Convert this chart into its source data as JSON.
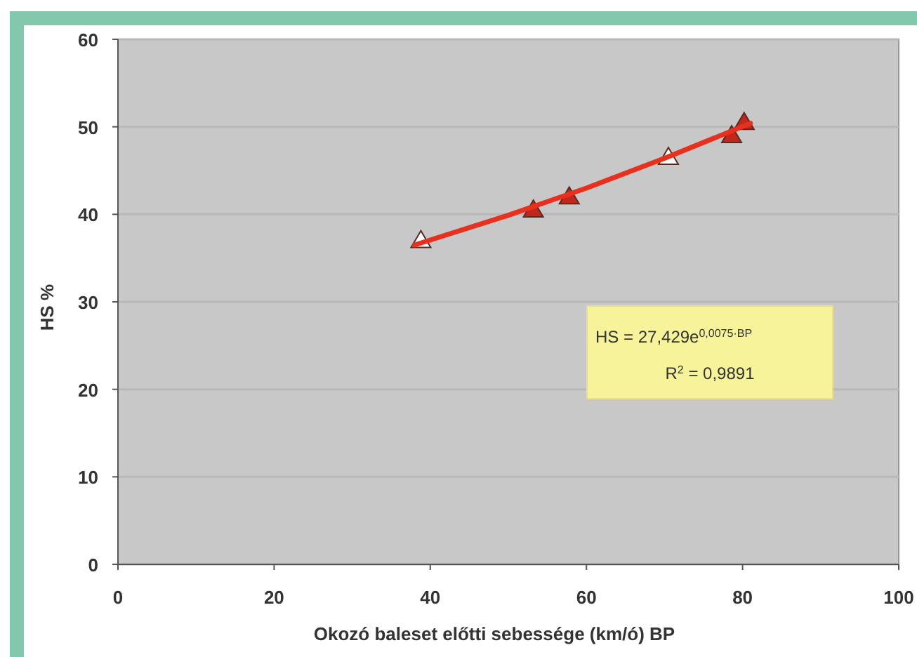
{
  "chart_data": {
    "type": "scatter",
    "xlabel": "Okozó baleset előtti sebessége (km/ó) BP",
    "ylabel": "HS %",
    "xlim": [
      0,
      100
    ],
    "xticks": [
      0,
      20,
      40,
      60,
      80,
      100
    ],
    "ylim": [
      0,
      60
    ],
    "yticks": [
      0,
      10,
      20,
      30,
      40,
      50,
      60
    ],
    "grid": "y",
    "series": [
      {
        "color": "#ffffff",
        "marker": "triangle",
        "x": [
          38.8,
          70.5
        ],
        "values": [
          37,
          46.5
        ]
      },
      {
        "color": "#c0281c",
        "marker": "triangle",
        "x": [
          53.2,
          57.8,
          78.6,
          80.2
        ],
        "values": [
          40.5,
          42,
          49,
          50.5
        ]
      },
      {
        "type": "line",
        "color": "#e8301e",
        "marker": "none",
        "line_style": "solid",
        "x": [
          38,
          50,
          60,
          70,
          81
        ],
        "values": [
          36.5,
          39.9,
          43,
          46.4,
          50.4
        ]
      }
    ],
    "annotations": [
      "HS = 27,429e$^{0,0075·BP}$",
      "R$^{2}$ = 0,9891"
    ]
  }
}
